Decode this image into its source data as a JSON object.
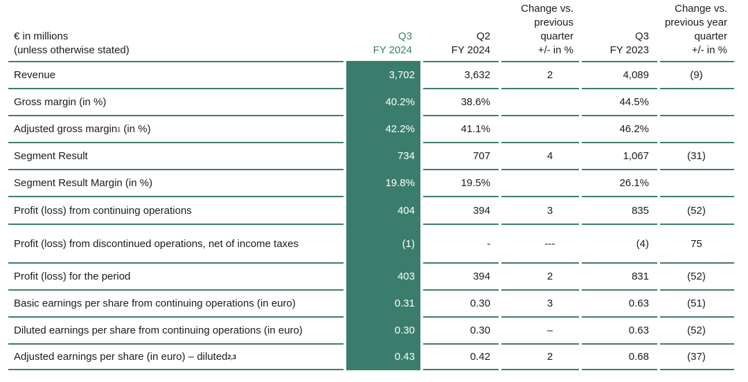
{
  "header": {
    "label_line1": "€ in millions",
    "label_line2": "(unless otherwise stated)",
    "q3fy24_line1": "Q3",
    "q3fy24_line2": "FY 2024",
    "q2fy24_line1": "Q2",
    "q2fy24_line2": "FY 2024",
    "chg_q_line1": "Change vs.",
    "chg_q_line2": "previous",
    "chg_q_line3": "quarter",
    "chg_q_line4": "+/- in %",
    "q3fy23_line1": "Q3",
    "q3fy23_line2": "FY 2023",
    "chg_y_line1": "Change vs.",
    "chg_y_line2": "previous year",
    "chg_y_line3": "quarter",
    "chg_y_line4": "+/- in %"
  },
  "rows": [
    {
      "label": "Revenue",
      "sup": "",
      "suffix": "",
      "q3fy24": "3,702",
      "q2fy24": "3,632",
      "chg_q": "2",
      "q3fy23": "4,089",
      "chg_y": "(9)"
    },
    {
      "label": "Gross margin (in %)",
      "sup": "",
      "suffix": "",
      "q3fy24": "40.2%",
      "q2fy24": "38.6%",
      "chg_q": "",
      "q3fy23": "44.5%",
      "chg_y": ""
    },
    {
      "label": "Adjusted gross margin",
      "sup": "1",
      "suffix": " (in %)",
      "q3fy24": "42.2%",
      "q2fy24": "41.1%",
      "chg_q": "",
      "q3fy23": "46.2%",
      "chg_y": ""
    },
    {
      "label": "Segment Result",
      "sup": "",
      "suffix": "",
      "q3fy24": "734",
      "q2fy24": "707",
      "chg_q": "4",
      "q3fy23": "1,067",
      "chg_y": "(31)"
    },
    {
      "label": "Segment Result Margin (in %)",
      "sup": "",
      "suffix": "",
      "q3fy24": "19.8%",
      "q2fy24": "19.5%",
      "chg_q": "",
      "q3fy23": "26.1%",
      "chg_y": ""
    },
    {
      "label": "Profit (loss) from continuing operations",
      "sup": "",
      "suffix": "",
      "q3fy24": "404",
      "q2fy24": "394",
      "chg_q": "3",
      "q3fy23": "835",
      "chg_y": "(52)"
    },
    {
      "label": "Profit (loss) from discontinued operations, net of income taxes",
      "sup": "",
      "suffix": "",
      "q3fy24": "(1)",
      "q2fy24": "-",
      "chg_q": "---",
      "q3fy23": "(4)",
      "chg_y": "75"
    },
    {
      "label": "Profit (loss) for the period",
      "sup": "",
      "suffix": "",
      "q3fy24": "403",
      "q2fy24": "394",
      "chg_q": "2",
      "q3fy23": "831",
      "chg_y": "(52)"
    },
    {
      "label": "Basic earnings per share from continuing operations (in euro)",
      "sup": "",
      "suffix": "",
      "q3fy24": "0.31",
      "q2fy24": "0.30",
      "chg_q": "3",
      "q3fy23": "0.63",
      "chg_y": "(51)"
    },
    {
      "label": "Diluted earnings per share from continuing operations (in euro)",
      "sup": "",
      "suffix": "",
      "q3fy24": "0.30",
      "q2fy24": "0.30",
      "chg_q": "–",
      "q3fy23": "0.63",
      "chg_y": "(52)"
    },
    {
      "label": "Adjusted earnings per share (in euro) – diluted",
      "sup": "2,3",
      "suffix": "",
      "q3fy24": "0.43",
      "q2fy24": "0.42",
      "chg_q": "2",
      "q3fy23": "0.68",
      "chg_y": "(37)"
    }
  ],
  "colors": {
    "accent": "#3a7d6c"
  }
}
